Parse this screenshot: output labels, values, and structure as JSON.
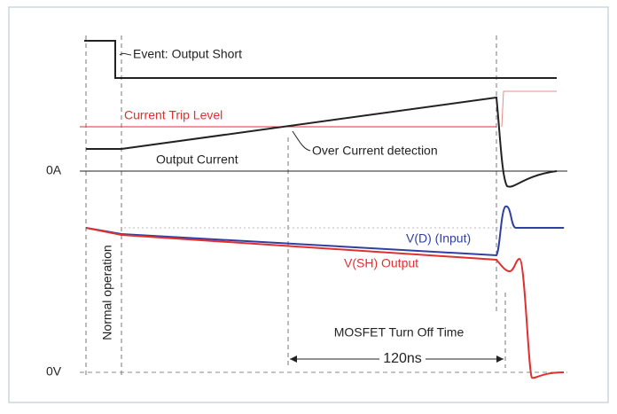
{
  "labels": {
    "event": "Event: Output Short",
    "trip_level": "Current Trip Level",
    "detection": "Over Current detection",
    "output_current": "Output Current",
    "zero_amp": "0A",
    "vd": "V(D) (Input)",
    "vsh": "V(SH) Output",
    "normal": "Normal operation",
    "turn_off": "MOSFET Turn Off Time",
    "duration": "120ns",
    "zero_volt": "0V"
  }
}
